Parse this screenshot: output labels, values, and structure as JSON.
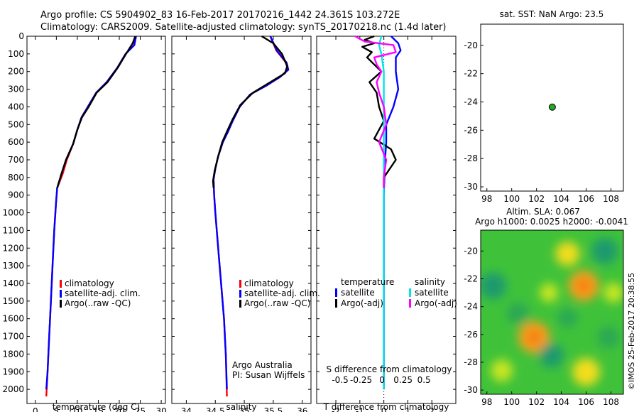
{
  "header": {
    "line1": "Argo profile: CS 5904902_83 16-Feb-2017 20170216_1442 24.361S 103.272E",
    "line2": "Climatology: CARS2009. Satellite-adjusted climatology: synTS_20170218.nc (1.4d later)"
  },
  "colors": {
    "climatology": "#ff0000",
    "satellite": "#0000ff",
    "argo": "#000000",
    "sal_satellite": "#00e5e5",
    "sal_argo": "#ff00ff",
    "marker": "#22aa22"
  },
  "credit": "©IMOS 25-Feb-2017 20:38:55",
  "chart_data": [
    {
      "id": "temperature",
      "type": "line",
      "xlabel": "temperature (deg C)",
      "ylabel": "depth",
      "xlim": [
        -2,
        31
      ],
      "ylim": [
        2080,
        0
      ],
      "xticks": [
        0,
        5,
        10,
        15,
        20,
        25,
        30
      ],
      "yticks": [
        0,
        100,
        200,
        300,
        400,
        500,
        600,
        700,
        800,
        900,
        1000,
        1100,
        1200,
        1300,
        1400,
        1500,
        1600,
        1700,
        1800,
        1900,
        2000
      ],
      "legend": [
        "climatology",
        "satellite-adj. clim.",
        "Argo(..raw -QC)"
      ],
      "series": [
        {
          "name": "climatology",
          "color": "#ff0000",
          "points": [
            [
              24,
              0
            ],
            [
              23.5,
              50
            ],
            [
              21.5,
              100
            ],
            [
              19.5,
              180
            ],
            [
              17,
              260
            ],
            [
              14.5,
              320
            ],
            [
              12.5,
              400
            ],
            [
              11,
              460
            ],
            [
              10,
              530
            ],
            [
              9,
              610
            ],
            [
              7.5,
              700
            ],
            [
              6.5,
              780
            ],
            [
              5.2,
              860
            ],
            [
              4.9,
              950
            ],
            [
              4.5,
              1100
            ],
            [
              4.1,
              1300
            ],
            [
              3.7,
              1500
            ],
            [
              3.3,
              1700
            ],
            [
              2.9,
              1900
            ],
            [
              2.6,
              2040
            ]
          ]
        },
        {
          "name": "satellite",
          "color": "#0000ff",
          "points": [
            [
              24,
              0
            ],
            [
              23.6,
              50
            ],
            [
              21.5,
              100
            ],
            [
              19.5,
              180
            ],
            [
              17,
              260
            ],
            [
              14.5,
              320
            ],
            [
              12.5,
              400
            ],
            [
              11,
              460
            ],
            [
              10,
              530
            ],
            [
              9,
              610
            ],
            [
              7.3,
              700
            ],
            [
              6.2,
              780
            ],
            [
              5.2,
              860
            ],
            [
              4.9,
              950
            ],
            [
              4.5,
              1100
            ],
            [
              4.1,
              1300
            ],
            [
              3.7,
              1500
            ],
            [
              3.3,
              1700
            ],
            [
              2.9,
              1900
            ],
            [
              2.6,
              2000
            ]
          ]
        },
        {
          "name": "argo",
          "color": "#000000",
          "points": [
            [
              23.8,
              0
            ],
            [
              23.2,
              40
            ],
            [
              21.6,
              100
            ],
            [
              19.6,
              180
            ],
            [
              17.2,
              260
            ],
            [
              14.6,
              320
            ],
            [
              12.7,
              400
            ],
            [
              11.1,
              460
            ],
            [
              10,
              530
            ],
            [
              9,
              610
            ],
            [
              7.3,
              700
            ],
            [
              6.2,
              780
            ],
            [
              5.2,
              860
            ]
          ]
        }
      ]
    },
    {
      "id": "salinity",
      "type": "line",
      "xlabel": "salinity",
      "ylabel": "depth",
      "xlim": [
        33.75,
        36.15
      ],
      "ylim": [
        2080,
        0
      ],
      "xticks": [
        34,
        34.5,
        35,
        35.5,
        36
      ],
      "xticklabels": [
        "34",
        "34.5",
        "35",
        "35.5",
        "36"
      ],
      "legend": [
        "climatology",
        "satellite-adj. clim.",
        "Argo(..raw -QC)"
      ],
      "annotation": [
        "Argo Australia",
        "PI: Susan Wijffels"
      ],
      "series": [
        {
          "name": "climatology",
          "color": "#ff0000",
          "points": [
            [
              35.45,
              0
            ],
            [
              35.55,
              80
            ],
            [
              35.72,
              150
            ],
            [
              35.75,
              190
            ],
            [
              35.62,
              230
            ],
            [
              35.38,
              280
            ],
            [
              35.1,
              330
            ],
            [
              34.92,
              400
            ],
            [
              34.8,
              480
            ],
            [
              34.72,
              540
            ],
            [
              34.63,
              600
            ],
            [
              34.55,
              680
            ],
            [
              34.5,
              750
            ],
            [
              34.47,
              810
            ],
            [
              34.48,
              900
            ],
            [
              34.5,
              1000
            ],
            [
              34.55,
              1200
            ],
            [
              34.6,
              1400
            ],
            [
              34.65,
              1600
            ],
            [
              34.68,
              1800
            ],
            [
              34.7,
              2040
            ]
          ]
        },
        {
          "name": "satellite",
          "color": "#0000ff",
          "points": [
            [
              35.45,
              0
            ],
            [
              35.56,
              80
            ],
            [
              35.73,
              150
            ],
            [
              35.76,
              190
            ],
            [
              35.62,
              230
            ],
            [
              35.38,
              280
            ],
            [
              35.1,
              330
            ],
            [
              34.92,
              400
            ],
            [
              34.8,
              480
            ],
            [
              34.72,
              540
            ],
            [
              34.63,
              600
            ],
            [
              34.55,
              680
            ],
            [
              34.5,
              750
            ],
            [
              34.47,
              810
            ],
            [
              34.48,
              900
            ],
            [
              34.5,
              1000
            ],
            [
              34.55,
              1200
            ],
            [
              34.6,
              1400
            ],
            [
              34.65,
              1600
            ],
            [
              34.68,
              1800
            ],
            [
              34.7,
              2000
            ]
          ]
        },
        {
          "name": "argo",
          "color": "#000000",
          "points": [
            [
              35.3,
              0
            ],
            [
              35.5,
              40
            ],
            [
              35.65,
              100
            ],
            [
              35.74,
              170
            ],
            [
              35.7,
              210
            ],
            [
              35.45,
              260
            ],
            [
              35.15,
              320
            ],
            [
              34.93,
              390
            ],
            [
              34.8,
              470
            ],
            [
              34.7,
              540
            ],
            [
              34.62,
              600
            ],
            [
              34.55,
              680
            ],
            [
              34.49,
              760
            ],
            [
              34.46,
              820
            ],
            [
              34.47,
              860
            ]
          ]
        }
      ]
    },
    {
      "id": "difference",
      "type": "line",
      "xlabel": "T difference from climatology",
      "xlabel_top": "S difference from climatology",
      "xlim": [
        -2.8,
        3
      ],
      "ylim": [
        2080,
        0
      ],
      "xticks": [
        -2,
        -1,
        0,
        1,
        2
      ],
      "xticks_top": [
        -0.5,
        -0.25,
        0,
        0.25,
        0.5
      ],
      "xticklabels_top": [
        "-0.5",
        "-0.25",
        "0",
        "0.25",
        "0.5"
      ],
      "legend_titles": [
        "temperature",
        "salinity"
      ],
      "legend": [
        "satellite",
        "Argo(-adj)",
        "satellite",
        "Argo(-adj)"
      ],
      "series": [
        {
          "name": "temperature satellite",
          "color": "#0000ff",
          "points": [
            [
              0.3,
              0
            ],
            [
              0.6,
              40
            ],
            [
              0.7,
              80
            ],
            [
              0.5,
              120
            ],
            [
              0.5,
              200
            ],
            [
              0.6,
              300
            ],
            [
              0.4,
              400
            ],
            [
              0.1,
              500
            ],
            [
              0.1,
              600
            ],
            [
              0.05,
              700
            ],
            [
              0,
              900
            ],
            [
              0,
              1500
            ],
            [
              0,
              2000
            ]
          ]
        },
        {
          "name": "temperature argo",
          "color": "#000000",
          "points": [
            [
              -0.4,
              0
            ],
            [
              -0.8,
              20
            ],
            [
              -0.4,
              40
            ],
            [
              -0.9,
              60
            ],
            [
              -0.5,
              90
            ],
            [
              -0.7,
              120
            ],
            [
              -0.4,
              160
            ],
            [
              -0.1,
              200
            ],
            [
              -0.6,
              260
            ],
            [
              -0.3,
              320
            ],
            [
              -0.2,
              400
            ],
            [
              0,
              480
            ],
            [
              -0.4,
              580
            ],
            [
              0.3,
              640
            ],
            [
              0.5,
              700
            ],
            [
              0.2,
              760
            ],
            [
              0,
              800
            ],
            [
              0,
              860
            ]
          ]
        },
        {
          "name": "salinity satellite",
          "color": "#00e5e5",
          "points": [
            [
              -0.1,
              0
            ],
            [
              -0.2,
              50
            ],
            [
              -0.1,
              100
            ],
            [
              0,
              200
            ],
            [
              0,
              400
            ],
            [
              0,
              800
            ],
            [
              0,
              1500
            ],
            [
              0,
              2000
            ]
          ]
        },
        {
          "name": "salinity argo",
          "color": "#ff00ff",
          "points": [
            [
              -1.2,
              0
            ],
            [
              -0.8,
              30
            ],
            [
              0.4,
              50
            ],
            [
              0.5,
              90
            ],
            [
              -0.4,
              120
            ],
            [
              -0.3,
              160
            ],
            [
              -0.1,
              200
            ],
            [
              -0.3,
              260
            ],
            [
              -0.2,
              320
            ],
            [
              0,
              400
            ],
            [
              0.1,
              500
            ],
            [
              -0.2,
              600
            ],
            [
              0.1,
              700
            ],
            [
              0,
              800
            ],
            [
              0,
              860
            ]
          ]
        }
      ]
    },
    {
      "id": "position",
      "type": "scatter",
      "title": "sat. SST: NaN Argo: 23.5",
      "xlim": [
        97.5,
        109
      ],
      "ylim": [
        -30.3,
        -18.5
      ],
      "xticks": [
        98,
        100,
        102,
        104,
        106,
        108
      ],
      "yticks": [
        -20,
        -22,
        -24,
        -26,
        -28,
        -30
      ],
      "points": [
        {
          "x": 103.272,
          "y": -24.361
        }
      ]
    },
    {
      "id": "sla",
      "type": "heatmap",
      "title_line1": "Altim. SLA: 0.067",
      "title_line2": "Argo h1000: 0.0025 h2000: -0.0041",
      "xlim": [
        97.5,
        109
      ],
      "ylim": [
        -30.3,
        -18.5
      ],
      "xticks": [
        98,
        100,
        102,
        104,
        106,
        108
      ],
      "yticks": [
        -20,
        -22,
        -24,
        -26,
        -28,
        -30
      ],
      "blobs": [
        {
          "x": 104.5,
          "y": -20.2,
          "value": 0.7
        },
        {
          "x": 105.8,
          "y": -22.5,
          "value": 0.95
        },
        {
          "x": 101.8,
          "y": -26.2,
          "value": 1.0
        },
        {
          "x": 99.2,
          "y": -28.6,
          "value": 0.6
        },
        {
          "x": 106.0,
          "y": -28.7,
          "value": 0.85
        },
        {
          "x": 103.0,
          "y": -23.0,
          "value": 0.45
        },
        {
          "x": 108.2,
          "y": -23.0,
          "value": 0.5
        },
        {
          "x": 98.5,
          "y": -22.5,
          "value": -0.8
        },
        {
          "x": 107.5,
          "y": -20.0,
          "value": -0.8
        },
        {
          "x": 100.5,
          "y": -24.5,
          "value": -0.6
        },
        {
          "x": 103.2,
          "y": -27.5,
          "value": -0.7
        },
        {
          "x": 104.5,
          "y": -24.8,
          "value": -0.5
        },
        {
          "x": 107.8,
          "y": -26.2,
          "value": -0.6
        }
      ]
    }
  ]
}
